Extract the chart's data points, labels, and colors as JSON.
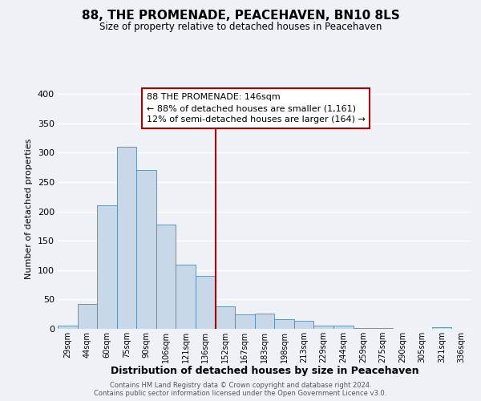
{
  "title": "88, THE PROMENADE, PEACEHAVEN, BN10 8LS",
  "subtitle": "Size of property relative to detached houses in Peacehaven",
  "xlabel": "Distribution of detached houses by size in Peacehaven",
  "ylabel": "Number of detached properties",
  "bin_labels": [
    "29sqm",
    "44sqm",
    "60sqm",
    "75sqm",
    "90sqm",
    "106sqm",
    "121sqm",
    "136sqm",
    "152sqm",
    "167sqm",
    "183sqm",
    "198sqm",
    "213sqm",
    "229sqm",
    "244sqm",
    "259sqm",
    "275sqm",
    "290sqm",
    "305sqm",
    "321sqm",
    "336sqm"
  ],
  "bin_values": [
    5,
    42,
    210,
    310,
    270,
    178,
    110,
    90,
    38,
    24,
    26,
    16,
    13,
    5,
    5,
    2,
    2,
    0,
    0,
    3,
    0
  ],
  "bar_color": "#c8d8e8",
  "bar_edge_color": "#5588aa",
  "vline_color": "#aa0000",
  "annotation_text": "88 THE PROMENADE: 146sqm\n← 88% of detached houses are smaller (1,161)\n12% of semi-detached houses are larger (164) →",
  "annotation_box_color": "#ffffff",
  "annotation_box_edge_color": "#aa0000",
  "bg_color": "#eef2f7",
  "grid_color": "#ffffff",
  "footer1": "Contains HM Land Registry data © Crown copyright and database right 2024.",
  "footer2": "Contains public sector information licensed under the Open Government Licence v3.0.",
  "ylim": [
    0,
    410
  ],
  "yticks": [
    0,
    50,
    100,
    150,
    200,
    250,
    300,
    350,
    400
  ]
}
